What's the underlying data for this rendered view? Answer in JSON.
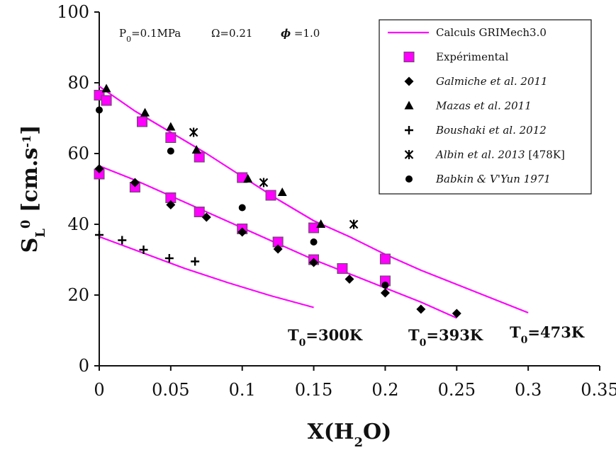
{
  "chart_data": {
    "type": "scatter",
    "xlabel": {
      "main": "X(H",
      "sub": "2",
      "tail": "O)"
    },
    "ylabel": {
      "main": "S",
      "sub": "L",
      "sup": "0",
      "tail": " [cm.s",
      "tail_sup": "-1",
      "end": "]"
    },
    "xlim": [
      0,
      0.35
    ],
    "ylim": [
      0,
      100
    ],
    "x_ticks": [
      0,
      0.05,
      0.1,
      0.15,
      0.2,
      0.25,
      0.3,
      0.35
    ],
    "x_tick_labels": [
      "0",
      "0.05",
      "0.1",
      "0.15",
      "0.2",
      "0.25",
      "0.3",
      "0.35"
    ],
    "y_ticks": [
      0,
      20,
      40,
      60,
      80,
      100
    ],
    "y_tick_labels": [
      "0",
      "20",
      "40",
      "60",
      "80",
      "100"
    ],
    "grid": false,
    "legend_position": "top-right",
    "conditions": {
      "pressure": {
        "main": "P",
        "sub": "0",
        "tail": "=0.1MPa"
      },
      "omega": "Ω=0.21",
      "phi": {
        "symbol": "ϕ",
        "tail": " =1.0"
      }
    },
    "curve_labels": [
      {
        "main": "T",
        "sub": "0",
        "tail": "=300K"
      },
      {
        "main": "T",
        "sub": "0",
        "tail": "=393K"
      },
      {
        "main": "T",
        "sub": "0",
        "tail": "=473K"
      }
    ],
    "series": [
      {
        "name": "Calculs GRIMech3.0",
        "kind": "line",
        "color": "#ff00ff",
        "curves": [
          {
            "x": [
              0,
              0.03,
              0.06,
              0.09,
              0.12,
              0.15
            ],
            "y": [
              36.5,
              32.0,
              27.5,
              23.5,
              19.8,
              16.5
            ]
          },
          {
            "x": [
              0,
              0.025,
              0.05,
              0.075,
              0.1,
              0.125,
              0.15,
              0.175,
              0.2,
              0.225,
              0.25
            ],
            "y": [
              56.5,
              52.5,
              48.0,
              43.5,
              39.0,
              34.5,
              30.0,
              26.0,
              22.0,
              18.0,
              13.5
            ]
          },
          {
            "x": [
              0,
              0.025,
              0.05,
              0.075,
              0.1,
              0.125,
              0.15,
              0.175,
              0.2,
              0.225,
              0.25,
              0.275,
              0.3
            ],
            "y": [
              79.0,
              72.0,
              66.0,
              60.0,
              53.5,
              47.0,
              41.0,
              36.5,
              31.5,
              27.0,
              23.0,
              19.0,
              15.0
            ]
          }
        ]
      },
      {
        "name": "Expérimental",
        "kind": "marker",
        "marker": "square",
        "color": "#ff00ff",
        "points": [
          [
            0,
            76.5
          ],
          [
            0.005,
            75
          ],
          [
            0.03,
            69
          ],
          [
            0.05,
            64.5
          ],
          [
            0.07,
            59
          ],
          [
            0.1,
            53.2
          ],
          [
            0.12,
            48.2
          ],
          [
            0.15,
            39
          ],
          [
            0.2,
            30.2
          ],
          [
            0,
            54.2
          ],
          [
            0.025,
            50.5
          ],
          [
            0.05,
            47.5
          ],
          [
            0.07,
            43.5
          ],
          [
            0.1,
            38.7
          ],
          [
            0.125,
            35
          ],
          [
            0.15,
            30
          ],
          [
            0.17,
            27.5
          ],
          [
            0.2,
            24
          ]
        ]
      },
      {
        "name": "Galmiche et al. 2011",
        "kind": "marker",
        "marker": "diamond",
        "color": "#000000",
        "italic": true,
        "points": [
          [
            0,
            55.7
          ],
          [
            0.025,
            51.8
          ],
          [
            0.05,
            45.5
          ],
          [
            0.075,
            42
          ],
          [
            0.1,
            37.8
          ],
          [
            0.125,
            33
          ],
          [
            0.15,
            29.2
          ],
          [
            0.175,
            24.5
          ],
          [
            0.2,
            20.6
          ],
          [
            0.225,
            16
          ],
          [
            0.25,
            14.8
          ]
        ]
      },
      {
        "name": "Mazas et al. 2011",
        "kind": "marker",
        "marker": "triangle",
        "color": "#000000",
        "italic": true,
        "points": [
          [
            0.005,
            78.3
          ],
          [
            0.032,
            71.5
          ],
          [
            0.05,
            67.5
          ],
          [
            0.068,
            61
          ],
          [
            0.104,
            52.8
          ],
          [
            0.128,
            49
          ],
          [
            0.155,
            40
          ]
        ]
      },
      {
        "name": "Boushaki et al. 2012",
        "kind": "marker",
        "marker": "plus",
        "color": "#000000",
        "italic": true,
        "points": [
          [
            0,
            37
          ],
          [
            0.016,
            35.5
          ],
          [
            0.031,
            32.8
          ],
          [
            0.049,
            30.4
          ],
          [
            0.067,
            29.5
          ]
        ]
      },
      {
        "name": "Albin et al. 2013",
        "name_suffix": " [478K]",
        "kind": "marker",
        "marker": "asterisk",
        "color": "#000000",
        "italic": true,
        "points": [
          [
            0.066,
            66
          ],
          [
            0.115,
            51.8
          ],
          [
            0.178,
            40
          ]
        ]
      },
      {
        "name": "Babkin & V'Yun 1971",
        "kind": "marker",
        "marker": "circle",
        "color": "#000000",
        "italic": true,
        "points": [
          [
            0,
            72.3
          ],
          [
            0.05,
            60.7
          ],
          [
            0.1,
            44.7
          ],
          [
            0.15,
            35
          ],
          [
            0.2,
            22.8
          ]
        ]
      }
    ]
  }
}
